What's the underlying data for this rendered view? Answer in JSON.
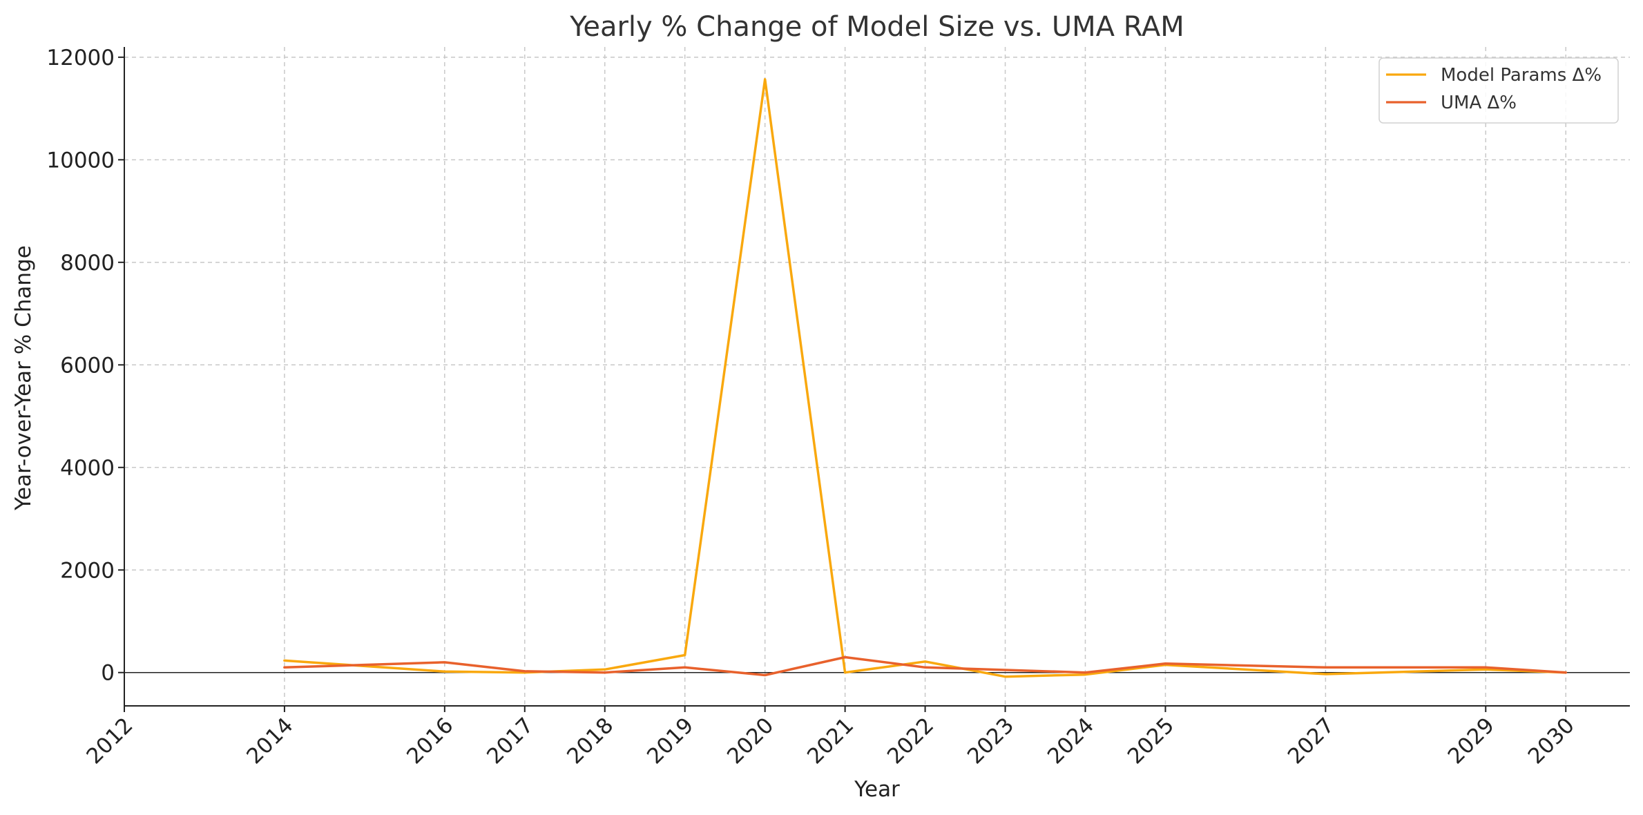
{
  "chart_data": {
    "type": "line",
    "title": "Yearly % Change of Model Size vs. UMA RAM",
    "xlabel": "Year",
    "ylabel": "Year-over-Year % Change",
    "xlim": [
      2012,
      2030.8
    ],
    "ylim": [
      -650,
      12200
    ],
    "x_ticks": [
      2012,
      2014,
      2016,
      2017,
      2018,
      2019,
      2020,
      2021,
      2022,
      2023,
      2024,
      2025,
      2027,
      2029,
      2030
    ],
    "y_ticks": [
      0,
      2000,
      4000,
      6000,
      8000,
      10000,
      12000
    ],
    "grid": true,
    "zero_line": true,
    "legend_position": "top-right",
    "series": [
      {
        "name": "Model Params Δ%",
        "color": "#F9A80E",
        "points": [
          {
            "x": 2014,
            "y": 233
          },
          {
            "x": 2016,
            "y": 20
          },
          {
            "x": 2017,
            "y": 0
          },
          {
            "x": 2018,
            "y": 60
          },
          {
            "x": 2019,
            "y": 340
          },
          {
            "x": 2020,
            "y": 11570
          },
          {
            "x": 2021,
            "y": 0
          },
          {
            "x": 2022,
            "y": 215
          },
          {
            "x": 2023,
            "y": -80
          },
          {
            "x": 2024,
            "y": -40
          },
          {
            "x": 2025,
            "y": 150
          },
          {
            "x": 2027,
            "y": -30
          },
          {
            "x": 2029,
            "y": 60
          },
          {
            "x": 2030,
            "y": 0
          }
        ]
      },
      {
        "name": "UMA Δ%",
        "color": "#E8612C",
        "points": [
          {
            "x": 2014,
            "y": 100
          },
          {
            "x": 2016,
            "y": 200
          },
          {
            "x": 2017,
            "y": 25
          },
          {
            "x": 2018,
            "y": 0
          },
          {
            "x": 2019,
            "y": 100
          },
          {
            "x": 2020,
            "y": -50
          },
          {
            "x": 2021,
            "y": 300
          },
          {
            "x": 2022,
            "y": 100
          },
          {
            "x": 2023,
            "y": 50
          },
          {
            "x": 2024,
            "y": 0
          },
          {
            "x": 2025,
            "y": 175
          },
          {
            "x": 2027,
            "y": 100
          },
          {
            "x": 2029,
            "y": 100
          },
          {
            "x": 2030,
            "y": 0
          }
        ]
      }
    ]
  }
}
